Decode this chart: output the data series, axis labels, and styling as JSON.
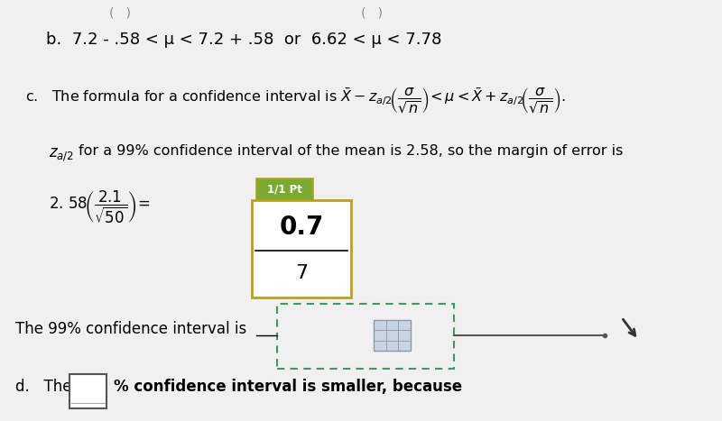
{
  "bg_color": "#f0f0f0",
  "line_b_text": "b.  7.2 - .58 < μ < 7.2 + .58  or  6.62 < μ < 7.78",
  "line_c_text": "c.   The formula for a confidence interval is $\\bar{X} - z_{a/2}\\!\\left(\\dfrac{\\sigma}{\\sqrt{n}}\\right)\\!<\\mu<\\bar{X}+z_{a/2}\\!\\left(\\dfrac{\\sigma}{\\sqrt{n}}\\right)$.",
  "line_z_text": "for a 99% confidence interval of the mean is 2.58, so the margin of error is",
  "answer_top": "0.7",
  "answer_bottom": "7",
  "pt_label": "1/1 Pt",
  "line_99ci": "The 99% confidence interval is",
  "line_d_pre": "d.   The",
  "line_d_post": "% confidence interval is smaller, because",
  "box_answer_bg": "#ffffff",
  "box_answer_border": "#b8a020",
  "pt_label_bg": "#7aaa30",
  "pt_label_color": "#ffffff",
  "dashed_box_color": "#3a9a60",
  "cursor_color": "#333333"
}
